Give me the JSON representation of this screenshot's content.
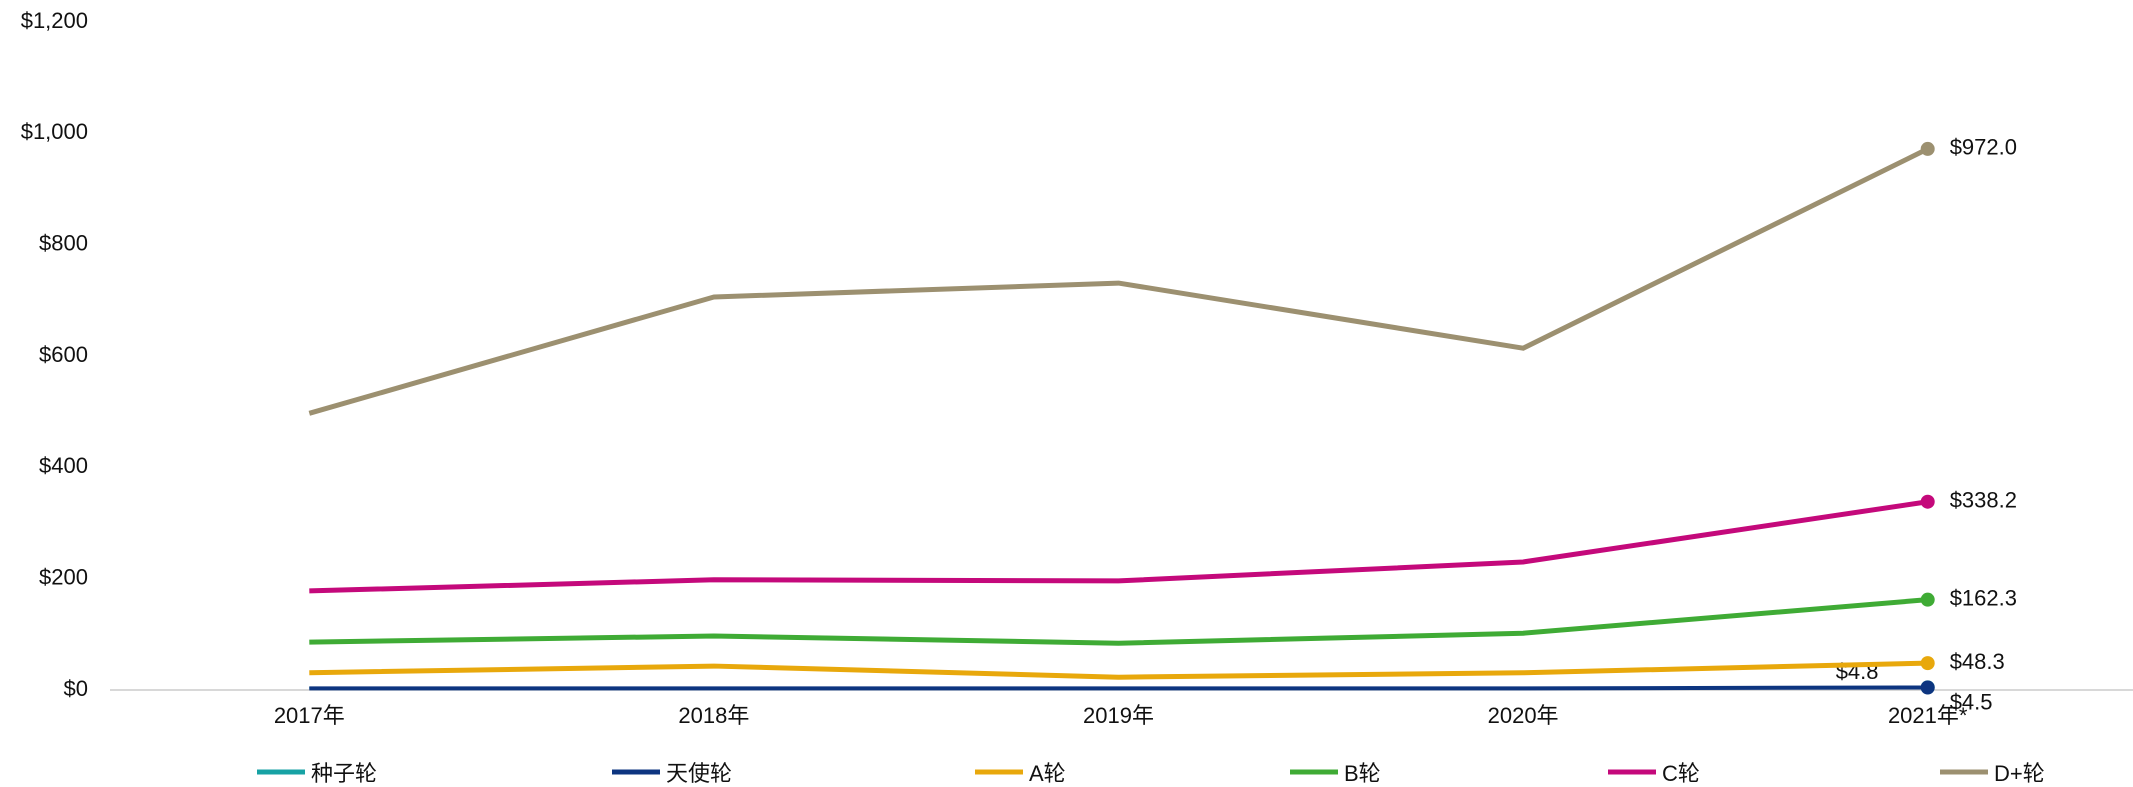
{
  "chart_data": {
    "type": "line",
    "categories": [
      "2017年",
      "2018年",
      "2019年",
      "2020年",
      "2021年*"
    ],
    "ylim": [
      0,
      1200
    ],
    "yticks": [
      {
        "value": 0,
        "label": "$0"
      },
      {
        "value": 200,
        "label": "$200"
      },
      {
        "value": 400,
        "label": "$400"
      },
      {
        "value": 600,
        "label": "$600"
      },
      {
        "value": 800,
        "label": "$800"
      },
      {
        "value": 1000,
        "label": "$1,000"
      },
      {
        "value": 1200,
        "label": "$1,200"
      }
    ],
    "legend": "bottom",
    "series": [
      {
        "name": "种子轮",
        "color": "#17a2a4",
        "values": [
          4,
          4,
          4,
          4,
          4.8
        ],
        "value_labels": [
          null,
          null,
          null,
          null,
          "$4.8"
        ]
      },
      {
        "name": "天使轮",
        "color": "#0d3580",
        "values": [
          3,
          3,
          3,
          3,
          4.5
        ],
        "value_labels": [
          null,
          null,
          null,
          null,
          "$4.5"
        ]
      },
      {
        "name": "A轮",
        "color": "#e8a80c",
        "values": [
          31,
          43,
          23,
          31,
          48.3
        ],
        "value_labels": [
          null,
          null,
          null,
          null,
          "$48.3"
        ]
      },
      {
        "name": "B轮",
        "color": "#3fab35",
        "values": [
          86,
          97,
          84,
          102,
          162.3
        ],
        "value_labels": [
          null,
          null,
          null,
          null,
          "$162.3"
        ]
      },
      {
        "name": "C轮",
        "color": "#c4097b",
        "values": [
          178,
          198,
          196,
          230,
          338.2
        ],
        "value_labels": [
          null,
          null,
          null,
          null,
          "$338.2"
        ]
      },
      {
        "name": "D+轮",
        "color": "#9c9070",
        "values": [
          497,
          706,
          731,
          614,
          972.0
        ],
        "value_labels": [
          null,
          null,
          null,
          null,
          "$972.0"
        ]
      }
    ]
  }
}
